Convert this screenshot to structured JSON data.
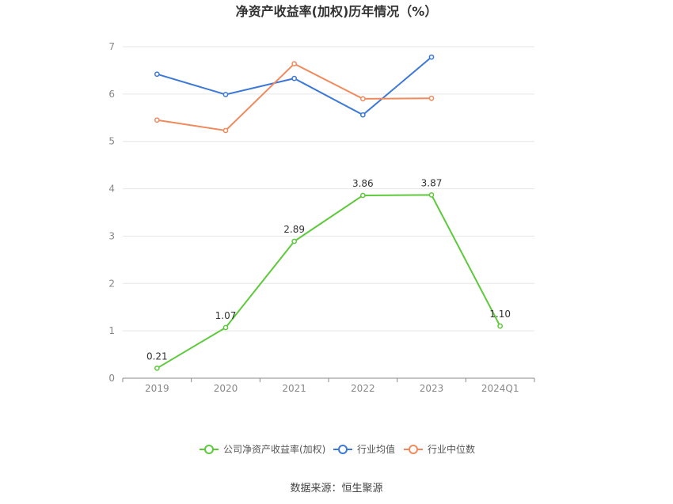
{
  "chart_data": {
    "type": "line",
    "title": "净资产收益率(加权)历年情况（%）",
    "categories": [
      "2019",
      "2020",
      "2021",
      "2022",
      "2023",
      "2024Q1"
    ],
    "ylim": [
      0,
      7
    ],
    "yticks": [
      "0",
      "1",
      "2",
      "3",
      "4",
      "5",
      "6",
      "7"
    ],
    "grid": true,
    "legend_position": "bottom",
    "series": [
      {
        "name": "公司净资产收益率(加权)",
        "color": "#5dc93b",
        "values": [
          0.21,
          1.07,
          2.89,
          3.86,
          3.87,
          1.1
        ],
        "labels": [
          "0.21",
          "1.07",
          "2.89",
          "3.86",
          "3.87",
          "1.10"
        ]
      },
      {
        "name": "行业均值",
        "color": "#3c78d8",
        "values": [
          6.42,
          5.99,
          6.33,
          5.56,
          6.78,
          null
        ]
      },
      {
        "name": "行业中位数",
        "color": "#f08a5d",
        "values": [
          5.45,
          5.23,
          6.64,
          5.9,
          5.91,
          null
        ]
      }
    ],
    "source": "数据来源：恒生聚源"
  }
}
